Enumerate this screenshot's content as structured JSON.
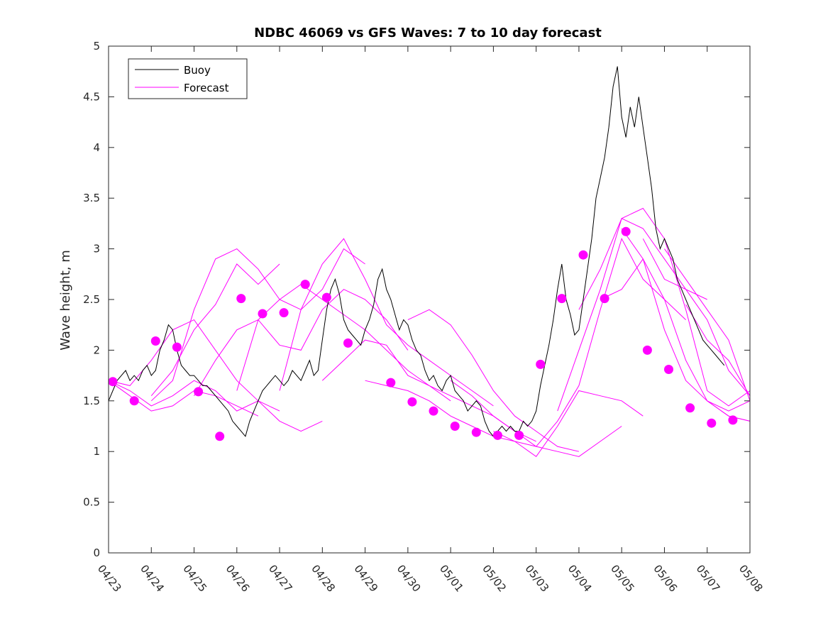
{
  "chart_data": {
    "type": "line",
    "title": "NDBC 46069 vs GFS Waves: 7 to 10 day forecast",
    "ylabel": "Wave height, m",
    "xlabel": "",
    "ylim": [
      0,
      5
    ],
    "xlim": [
      "04/23",
      "05/08"
    ],
    "xticks": [
      "04/23",
      "04/24",
      "04/25",
      "04/26",
      "04/27",
      "04/28",
      "04/29",
      "04/30",
      "05/01",
      "05/02",
      "05/03",
      "05/04",
      "05/05",
      "05/06",
      "05/07",
      "05/08"
    ],
    "yticks": [
      "0",
      "0.5",
      "1",
      "1.5",
      "2",
      "2.5",
      "3",
      "3.5",
      "4",
      "4.5",
      "5"
    ],
    "grid": false,
    "legend": {
      "position": "top-left",
      "entries": [
        "Buoy",
        "Forecast"
      ]
    },
    "colors": {
      "buoy": "#000000",
      "forecast": "#ff00ff"
    },
    "series": [
      {
        "name": "Buoy",
        "x_days": [
          0,
          0.1,
          0.2,
          0.3,
          0.4,
          0.5,
          0.6,
          0.7,
          0.8,
          0.9,
          1.0,
          1.1,
          1.2,
          1.3,
          1.4,
          1.5,
          1.6,
          1.7,
          1.8,
          1.9,
          2.0,
          2.1,
          2.2,
          2.3,
          2.4,
          2.5,
          2.6,
          2.7,
          2.8,
          2.9,
          3.0,
          3.1,
          3.2,
          3.3,
          3.4,
          3.5,
          3.6,
          3.7,
          3.8,
          3.9,
          4.0,
          4.1,
          4.2,
          4.3,
          4.4,
          4.5,
          4.6,
          4.7,
          4.8,
          4.9,
          5.0,
          5.1,
          5.2,
          5.3,
          5.4,
          5.5,
          5.6,
          5.7,
          5.8,
          5.9,
          6.0,
          6.1,
          6.2,
          6.3,
          6.4,
          6.5,
          6.6,
          6.7,
          6.8,
          6.9,
          7.0,
          7.1,
          7.2,
          7.3,
          7.4,
          7.5,
          7.6,
          7.7,
          7.8,
          7.9,
          8.0,
          8.1,
          8.2,
          8.3,
          8.4,
          8.5,
          8.6,
          8.7,
          8.8,
          8.9,
          9.0,
          9.1,
          9.2,
          9.3,
          9.4,
          9.5,
          9.6,
          9.7,
          9.8,
          9.9,
          10.0,
          10.1,
          10.2,
          10.3,
          10.4,
          10.5,
          10.6,
          10.7,
          10.8,
          10.9,
          11.0,
          11.1,
          11.2,
          11.3,
          11.4,
          11.5,
          11.6,
          11.7,
          11.8,
          11.9,
          12.0,
          12.1,
          12.2,
          12.3,
          12.4,
          12.5,
          12.6,
          12.7,
          12.8,
          12.9,
          13.0,
          13.1,
          13.2,
          13.3,
          13.4,
          13.5,
          13.6,
          13.7,
          13.8,
          13.9,
          14.0,
          14.1,
          14.2,
          14.3,
          14.4
        ],
        "values": [
          1.5,
          1.6,
          1.7,
          1.75,
          1.8,
          1.7,
          1.75,
          1.7,
          1.8,
          1.85,
          1.75,
          1.8,
          2.0,
          2.1,
          2.25,
          2.2,
          2.0,
          1.85,
          1.8,
          1.75,
          1.75,
          1.7,
          1.65,
          1.65,
          1.6,
          1.55,
          1.5,
          1.45,
          1.4,
          1.3,
          1.25,
          1.2,
          1.15,
          1.3,
          1.4,
          1.5,
          1.6,
          1.65,
          1.7,
          1.75,
          1.7,
          1.65,
          1.7,
          1.8,
          1.75,
          1.7,
          1.8,
          1.9,
          1.75,
          1.8,
          2.1,
          2.4,
          2.6,
          2.7,
          2.55,
          2.3,
          2.2,
          2.15,
          2.1,
          2.05,
          2.2,
          2.3,
          2.45,
          2.7,
          2.8,
          2.6,
          2.5,
          2.35,
          2.2,
          2.3,
          2.25,
          2.1,
          2.0,
          1.95,
          1.8,
          1.7,
          1.75,
          1.65,
          1.6,
          1.7,
          1.75,
          1.6,
          1.55,
          1.5,
          1.4,
          1.45,
          1.5,
          1.45,
          1.3,
          1.2,
          1.15,
          1.2,
          1.25,
          1.2,
          1.25,
          1.2,
          1.2,
          1.3,
          1.25,
          1.3,
          1.4,
          1.65,
          1.85,
          2.05,
          2.3,
          2.6,
          2.85,
          2.5,
          2.35,
          2.15,
          2.2,
          2.5,
          2.8,
          3.1,
          3.5,
          3.7,
          3.9,
          4.2,
          4.6,
          4.8,
          4.3,
          4.1,
          4.4,
          4.2,
          4.5,
          4.2,
          3.9,
          3.6,
          3.2,
          3.0,
          3.1,
          3.0,
          2.9,
          2.7,
          2.6,
          2.5,
          2.4,
          2.3,
          2.2,
          2.1,
          2.05,
          2.0,
          1.95,
          1.9,
          1.85
        ]
      },
      {
        "name": "Forecast",
        "markers": {
          "x_days": [
            0.1,
            0.6,
            1.1,
            1.6,
            2.1,
            2.6,
            3.1,
            3.6,
            4.1,
            4.6,
            5.1,
            5.6,
            6.6,
            7.1,
            7.6,
            8.1,
            8.6,
            9.1,
            9.6,
            10.1,
            10.6,
            11.1,
            11.6,
            12.1,
            12.6,
            13.1,
            13.6,
            14.1,
            14.6
          ],
          "values": [
            1.69,
            1.5,
            2.09,
            2.03,
            1.59,
            1.15,
            2.51,
            2.36,
            2.37,
            2.65,
            2.52,
            2.07,
            1.68,
            1.49,
            1.4,
            1.25,
            1.19,
            1.16,
            1.16,
            1.86,
            2.51,
            2.94,
            2.51,
            3.17,
            2.0,
            1.81,
            1.43,
            1.28,
            1.31
          ]
        },
        "runs": [
          {
            "x_days": [
              0,
              0.5,
              1,
              1.5,
              2,
              2.5,
              3,
              3.5
            ],
            "values": [
              1.7,
              1.55,
              1.4,
              1.45,
              1.6,
              1.55,
              1.45,
              1.35
            ]
          },
          {
            "x_days": [
              0,
              0.5,
              1,
              1.5,
              2,
              2.5,
              3,
              3.5,
              4
            ],
            "values": [
              1.7,
              1.6,
              1.45,
              1.55,
              1.7,
              1.6,
              1.4,
              1.5,
              1.4
            ]
          },
          {
            "x_days": [
              0,
              0.5,
              1,
              1.5,
              2,
              2.5,
              3,
              3.5,
              4,
              4.5,
              5
            ],
            "values": [
              1.7,
              1.65,
              1.9,
              2.2,
              2.3,
              2.0,
              1.7,
              1.5,
              1.3,
              1.2,
              1.3
            ]
          },
          {
            "x_days": [
              1,
              1.5,
              2,
              2.5,
              3,
              3.5,
              4
            ],
            "values": [
              1.55,
              1.8,
              2.2,
              2.45,
              2.85,
              2.65,
              2.85
            ]
          },
          {
            "x_days": [
              1,
              1.5,
              2,
              2.5,
              3,
              3.5,
              4,
              4.5,
              5,
              5.5,
              6
            ],
            "values": [
              1.5,
              1.7,
              2.4,
              2.9,
              3.0,
              2.8,
              2.5,
              2.4,
              2.6,
              3.0,
              2.85
            ]
          },
          {
            "x_days": [
              2,
              2.5,
              3,
              3.5,
              4,
              4.5,
              5,
              5.5,
              6,
              6.5,
              7
            ],
            "values": [
              1.55,
              1.9,
              2.2,
              2.3,
              2.05,
              2.0,
              2.4,
              2.6,
              2.5,
              2.3,
              2.0
            ]
          },
          {
            "x_days": [
              3,
              3.5,
              4,
              4.5,
              5,
              5.5,
              6,
              6.5,
              7,
              7.5,
              8
            ],
            "values": [
              1.6,
              2.3,
              2.5,
              2.65,
              2.5,
              2.35,
              2.2,
              2.0,
              1.8,
              1.65,
              1.5
            ]
          },
          {
            "x_days": [
              4,
              4.5,
              5,
              5.5,
              6,
              6.5,
              7,
              7.5,
              8,
              8.5,
              9
            ],
            "values": [
              1.6,
              2.4,
              2.85,
              3.1,
              2.7,
              2.25,
              2.05,
              1.9,
              1.75,
              1.6,
              1.45
            ]
          },
          {
            "x_days": [
              5,
              5.5,
              6,
              6.5,
              7,
              7.5,
              8,
              8.5,
              9,
              9.5,
              10
            ],
            "values": [
              1.7,
              1.9,
              2.1,
              2.05,
              1.75,
              1.65,
              1.55,
              1.45,
              1.35,
              1.2,
              1.1
            ]
          },
          {
            "x_days": [
              6,
              6.5,
              7,
              7.5,
              8,
              8.5,
              9,
              9.5,
              10
            ],
            "values": [
              1.7,
              1.65,
              1.6,
              1.5,
              1.35,
              1.25,
              1.15,
              1.1,
              1.05
            ]
          },
          {
            "x_days": [
              7,
              7.5,
              8,
              8.5,
              9,
              9.5,
              10,
              10.5,
              11
            ],
            "values": [
              2.3,
              2.4,
              2.25,
              1.95,
              1.6,
              1.35,
              1.2,
              1.05,
              1.0
            ]
          },
          {
            "x_days": [
              8,
              8.5,
              9,
              9.5,
              10,
              10.5,
              11,
              11.5,
              12
            ],
            "values": [
              1.7,
              1.55,
              1.35,
              1.2,
              1.05,
              1.0,
              0.95,
              1.1,
              1.25
            ]
          },
          {
            "x_days": [
              9,
              9.5,
              10,
              10.5,
              11,
              11.5,
              12,
              12.5
            ],
            "values": [
              1.2,
              1.1,
              0.95,
              1.25,
              1.6,
              1.55,
              1.5,
              1.35
            ]
          },
          {
            "x_days": [
              10,
              10.5,
              11,
              11.5,
              12,
              12.5,
              13,
              13.5
            ],
            "values": [
              1.05,
              1.3,
              1.65,
              2.4,
              3.1,
              2.7,
              2.5,
              2.3
            ]
          },
          {
            "x_days": [
              10.5,
              11,
              11.5,
              12,
              12.5,
              13,
              13.5,
              14
            ],
            "values": [
              1.4,
              2.0,
              2.6,
              3.3,
              3.2,
              2.9,
              2.6,
              2.5
            ]
          },
          {
            "x_days": [
              11,
              11.5,
              12,
              12.5,
              13,
              13.5,
              14,
              14.5,
              15
            ],
            "values": [
              2.4,
              2.8,
              3.3,
              3.4,
              3.1,
              2.4,
              1.6,
              1.45,
              1.6
            ]
          },
          {
            "x_days": [
              11.5,
              12,
              12.5,
              13,
              13.5,
              14,
              14.5,
              15
            ],
            "values": [
              2.5,
              2.6,
              2.9,
              2.2,
              1.7,
              1.5,
              1.4,
              1.5
            ]
          },
          {
            "x_days": [
              12,
              12.5,
              13,
              13.5,
              14,
              14.5,
              15
            ],
            "values": [
              3.2,
              2.9,
              2.5,
              1.9,
              1.5,
              1.35,
              1.3
            ]
          },
          {
            "x_days": [
              12.5,
              13,
              13.5,
              14,
              14.5,
              15
            ],
            "values": [
              3.1,
              2.7,
              2.6,
              2.3,
              1.8,
              1.55
            ]
          },
          {
            "x_days": [
              13,
              13.5,
              14,
              14.5,
              15
            ],
            "values": [
              3.0,
              2.7,
              2.4,
              2.1,
              1.5
            ]
          },
          {
            "x_days": [
              13.5,
              14,
              14.5,
              15
            ],
            "values": [
              2.45,
              2.1,
              1.9,
              1.55
            ]
          },
          {
            "x_days": [
              14,
              14.5,
              15
            ],
            "values": [
              1.5,
              1.35,
              1.3
            ]
          }
        ]
      }
    ]
  }
}
